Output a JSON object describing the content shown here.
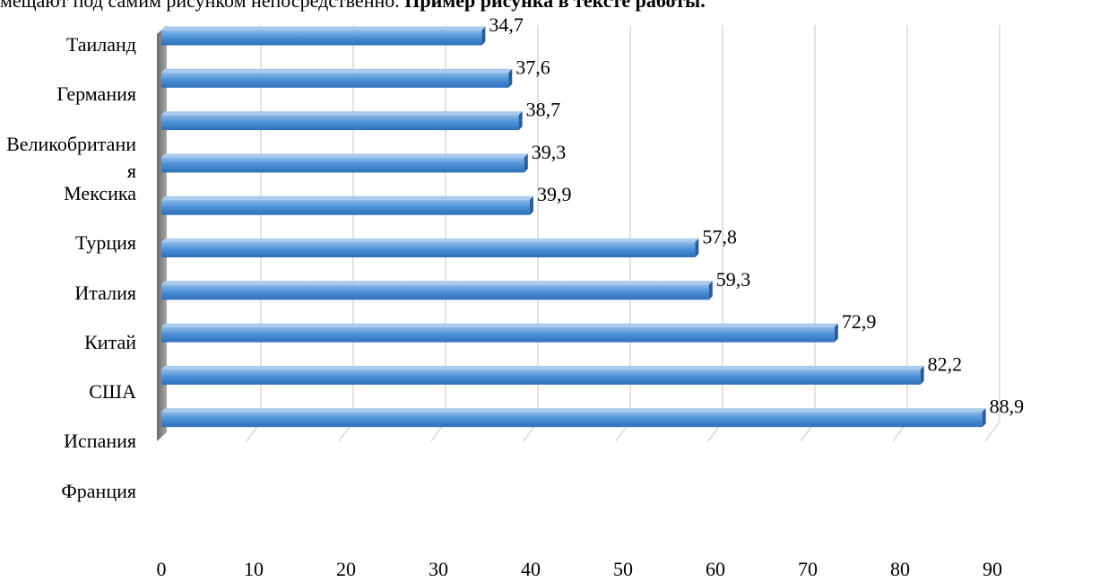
{
  "text": {
    "plain": "мещают под самим рисунком непосредственно.",
    "bold": "Пример рисунка в тексте работы."
  },
  "chart_data": {
    "type": "bar",
    "categories": [
      "Таиланд",
      "Германия",
      "Великобритания",
      "Мексика",
      "Турция",
      "Италия",
      "Китай",
      "США",
      "Испания",
      "Франция"
    ],
    "values": [
      34.7,
      37.6,
      38.7,
      39.3,
      39.9,
      57.8,
      59.3,
      72.9,
      82.2,
      88.9
    ],
    "value_labels": [
      "34,7",
      "37,6",
      "38,7",
      "39,3",
      "39,9",
      "57,8",
      "59,3",
      "72,9",
      "82,2",
      "88,9"
    ],
    "color": "#4a8fd6",
    "xlim": [
      0,
      90
    ],
    "xticks": [
      0,
      10,
      20,
      30,
      40,
      50,
      60,
      70,
      80,
      90
    ],
    "grid": true
  }
}
